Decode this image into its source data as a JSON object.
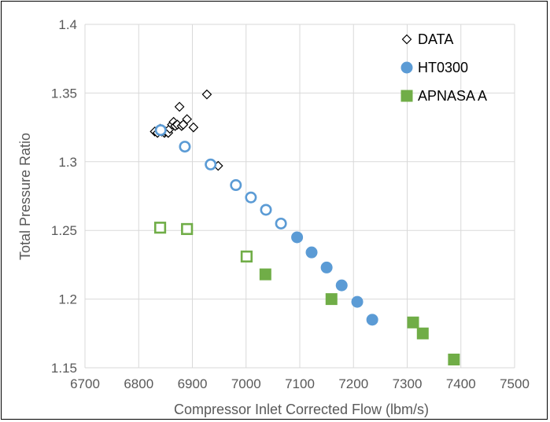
{
  "chart_data": {
    "type": "scatter",
    "xlabel": "Compressor Inlet Corrected Flow (lbm/s)",
    "ylabel": "Total Pressure Ratio",
    "xlim": [
      6700,
      7500
    ],
    "ylim": [
      1.15,
      1.4
    ],
    "xticks": [
      6700,
      6800,
      6900,
      7000,
      7100,
      7200,
      7300,
      7400,
      7500
    ],
    "yticks": [
      1.15,
      1.2,
      1.25,
      1.3,
      1.35,
      1.4
    ],
    "xtick_labels": [
      "6700",
      "6800",
      "6900",
      "7000",
      "7100",
      "7200",
      "7300",
      "7400",
      "7500"
    ],
    "ytick_labels": [
      "1.15",
      "1.2",
      "1.25",
      "1.3",
      "1.35",
      "1.4"
    ],
    "grid": "both",
    "legend_position": "top-right",
    "series": [
      {
        "name": "DATA",
        "marker": "diamond-open",
        "color": "#000000",
        "points": [
          [
            6830,
            1.322
          ],
          [
            6835,
            1.321
          ],
          [
            6840,
            1.324
          ],
          [
            6843,
            1.322
          ],
          [
            6848,
            1.321
          ],
          [
            6850,
            1.322
          ],
          [
            6855,
            1.321
          ],
          [
            6858,
            1.324
          ],
          [
            6862,
            1.327
          ],
          [
            6865,
            1.329
          ],
          [
            6868,
            1.326
          ],
          [
            6872,
            1.327
          ],
          [
            6876,
            1.34
          ],
          [
            6880,
            1.326
          ],
          [
            6883,
            1.327
          ],
          [
            6890,
            1.331
          ],
          [
            6902,
            1.325
          ],
          [
            6927,
            1.349
          ],
          [
            6948,
            1.297
          ]
        ]
      },
      {
        "name": "HT0300",
        "marker": "circle",
        "color": "#5b9bd5",
        "points": [
          {
            "x": 6841,
            "y": 1.323,
            "open": true
          },
          {
            "x": 6886,
            "y": 1.311,
            "open": true
          },
          {
            "x": 6934,
            "y": 1.298,
            "open": true
          },
          {
            "x": 6981,
            "y": 1.283,
            "open": true
          },
          {
            "x": 7009,
            "y": 1.274,
            "open": true
          },
          {
            "x": 7037,
            "y": 1.265,
            "open": true
          },
          {
            "x": 7065,
            "y": 1.255,
            "open": true
          },
          {
            "x": 7095,
            "y": 1.245,
            "open": false
          },
          {
            "x": 7122,
            "y": 1.234,
            "open": false
          },
          {
            "x": 7150,
            "y": 1.223,
            "open": false
          },
          {
            "x": 7178,
            "y": 1.21,
            "open": false
          },
          {
            "x": 7207,
            "y": 1.198,
            "open": false
          },
          {
            "x": 7235,
            "y": 1.185,
            "open": false
          }
        ]
      },
      {
        "name": "APNASA A",
        "marker": "square",
        "color": "#70ad47",
        "points": [
          {
            "x": 6840,
            "y": 1.252,
            "open": true
          },
          {
            "x": 6890,
            "y": 1.251,
            "open": true
          },
          {
            "x": 7001,
            "y": 1.231,
            "open": true
          },
          {
            "x": 7036,
            "y": 1.218,
            "open": false
          },
          {
            "x": 7159,
            "y": 1.2,
            "open": false
          },
          {
            "x": 7311,
            "y": 1.183,
            "open": false
          },
          {
            "x": 7329,
            "y": 1.175,
            "open": false
          },
          {
            "x": 7387,
            "y": 1.156,
            "open": false
          }
        ]
      }
    ]
  }
}
